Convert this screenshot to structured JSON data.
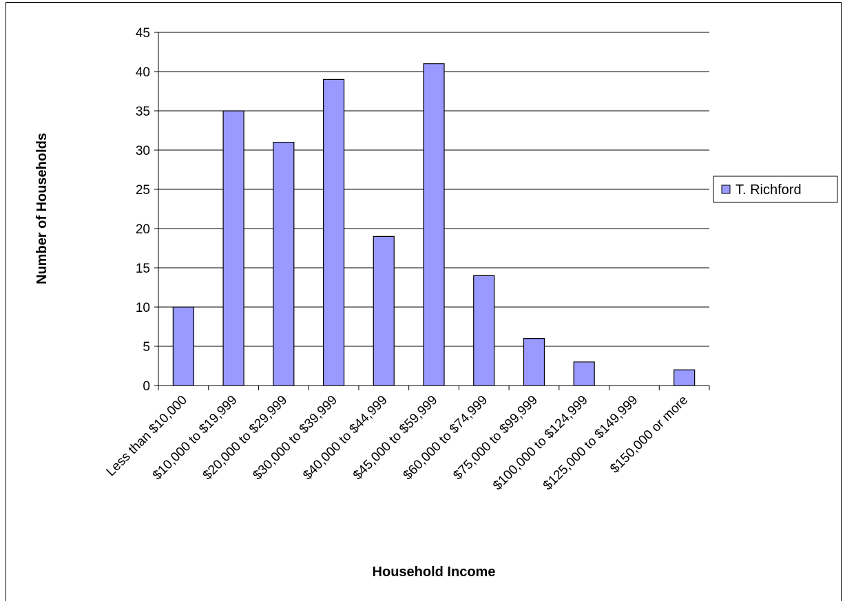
{
  "chart_data": {
    "type": "bar",
    "title": "",
    "xlabel": "Household Income",
    "ylabel": "Number of Households",
    "categories": [
      "Less than $10,000",
      "$10,000 to $19,999",
      "$20,000 to $29,999",
      "$30,000 to $39,999",
      "$40,000 to $44,999",
      "$45,000 to $59,999",
      "$60,000 to $74,999",
      "$75,000 to $99,999",
      "$100,000 to $124,999",
      "$125,000 to $149,999",
      "$150,000 or more"
    ],
    "series": [
      {
        "name": "T. Richford",
        "values": [
          10,
          35,
          31,
          39,
          19,
          41,
          14,
          6,
          3,
          0,
          2
        ],
        "color": "#9999ff"
      }
    ],
    "ylim": [
      0,
      45
    ],
    "yticks": [
      0,
      5,
      10,
      15,
      20,
      25,
      30,
      35,
      40,
      45
    ],
    "grid": true,
    "legend_position": "right"
  }
}
